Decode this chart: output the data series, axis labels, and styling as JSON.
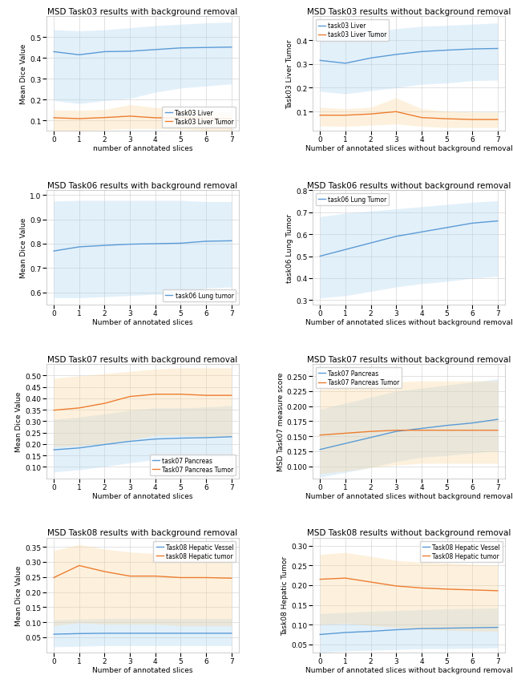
{
  "x": [
    0,
    1,
    2,
    3,
    4,
    5,
    6,
    7
  ],
  "plots": [
    {
      "title": "MSD Task03 results with background removal",
      "xlabel": "number of annotated slices",
      "ylabel": "Mean Dice Value",
      "series": [
        {
          "label": "Task03 Liver",
          "color": "#5B9BD5",
          "mean": [
            0.43,
            0.415,
            0.43,
            0.432,
            0.44,
            0.448,
            0.45,
            0.452
          ],
          "std_low": [
            0.195,
            0.18,
            0.195,
            0.205,
            0.235,
            0.255,
            0.265,
            0.275
          ],
          "std_high": [
            0.535,
            0.53,
            0.535,
            0.545,
            0.555,
            0.562,
            0.568,
            0.572
          ]
        },
        {
          "label": "Task03 Liver Tumor",
          "color": "#ED7D31",
          "mean": [
            0.112,
            0.108,
            0.113,
            0.12,
            0.112,
            0.112,
            0.11,
            0.108
          ],
          "std_low": [
            0.05,
            0.048,
            0.055,
            0.06,
            0.06,
            0.058,
            0.05,
            0.048
          ],
          "std_high": [
            0.15,
            0.148,
            0.152,
            0.175,
            0.162,
            0.15,
            0.145,
            0.14
          ]
        }
      ],
      "ylim": [
        0.05,
        0.6
      ],
      "yticks": [
        0.1,
        0.2,
        0.3,
        0.4,
        0.5
      ],
      "legend_loc": "lower right"
    },
    {
      "title": "MSD Task03 results without background removal",
      "xlabel": "Number of annotated slices without background removal",
      "ylabel": "Task03 Liver Tumor",
      "series": [
        {
          "label": "task03 Liver",
          "color": "#5B9BD5",
          "mean": [
            0.315,
            0.303,
            0.325,
            0.34,
            0.352,
            0.358,
            0.363,
            0.365
          ],
          "std_low": [
            0.185,
            0.175,
            0.188,
            0.2,
            0.215,
            0.22,
            0.23,
            0.232
          ],
          "std_high": [
            0.425,
            0.42,
            0.432,
            0.448,
            0.458,
            0.462,
            0.467,
            0.472
          ]
        },
        {
          "label": "task03 Liver Tumor",
          "color": "#ED7D31",
          "mean": [
            0.085,
            0.085,
            0.09,
            0.1,
            0.075,
            0.07,
            0.067,
            0.067
          ],
          "std_low": [
            0.04,
            0.038,
            0.043,
            0.048,
            0.038,
            0.033,
            0.033,
            0.033
          ],
          "std_high": [
            0.118,
            0.112,
            0.118,
            0.158,
            0.112,
            0.102,
            0.098,
            0.098
          ]
        }
      ],
      "ylim": [
        0.02,
        0.5
      ],
      "yticks": [
        0.1,
        0.2,
        0.3,
        0.4
      ],
      "legend_loc": "upper left"
    },
    {
      "title": "MSD Task06 results with background removal",
      "xlabel": "Number of annotated slices",
      "ylabel": "Mean Dice Value",
      "series": [
        {
          "label": "task06 Lung tumor",
          "color": "#5B9BD5",
          "mean": [
            0.77,
            0.787,
            0.793,
            0.798,
            0.8,
            0.802,
            0.81,
            0.812
          ],
          "std_low": [
            0.578,
            0.578,
            0.582,
            0.587,
            0.592,
            0.593,
            0.618,
            0.622
          ],
          "std_high": [
            0.975,
            0.978,
            0.978,
            0.978,
            0.978,
            0.978,
            0.973,
            0.973
          ]
        }
      ],
      "ylim": [
        0.55,
        1.02
      ],
      "yticks": [
        0.6,
        0.7,
        0.8,
        0.9,
        1.0
      ],
      "legend_loc": "lower right"
    },
    {
      "title": "MSD Task06 results without background removal",
      "xlabel": "Number of annotated slices without background removal",
      "ylabel": "task06 Lung Tumor",
      "series": [
        {
          "label": "task06 Lung Tumor",
          "color": "#5B9BD5",
          "mean": [
            0.5,
            0.53,
            0.56,
            0.59,
            0.61,
            0.63,
            0.65,
            0.66
          ],
          "std_low": [
            0.31,
            0.32,
            0.34,
            0.36,
            0.375,
            0.385,
            0.4,
            0.408
          ],
          "std_high": [
            0.68,
            0.695,
            0.705,
            0.715,
            0.725,
            0.735,
            0.745,
            0.752
          ]
        }
      ],
      "ylim": [
        0.28,
        0.8
      ],
      "yticks": [
        0.3,
        0.4,
        0.5,
        0.6,
        0.7,
        0.8
      ],
      "legend_loc": "upper left"
    },
    {
      "title": "MSD Task07 results with background removal",
      "xlabel": "Number of annotated slices",
      "ylabel": "Mean Dice Value",
      "series": [
        {
          "label": "task07 Pancreas",
          "color": "#5B9BD5",
          "mean": [
            0.175,
            0.183,
            0.198,
            0.212,
            0.222,
            0.226,
            0.228,
            0.232
          ],
          "std_low": [
            0.078,
            0.088,
            0.102,
            0.118,
            0.132,
            0.138,
            0.142,
            0.148
          ],
          "std_high": [
            0.308,
            0.318,
            0.332,
            0.348,
            0.358,
            0.358,
            0.362,
            0.368
          ]
        },
        {
          "label": "Task07 Pancreas Tumor",
          "color": "#ED7D31",
          "mean": [
            0.348,
            0.358,
            0.378,
            0.408,
            0.418,
            0.418,
            0.413,
            0.413
          ],
          "std_low": [
            0.188,
            0.193,
            0.203,
            0.218,
            0.238,
            0.238,
            0.233,
            0.233
          ],
          "std_high": [
            0.488,
            0.498,
            0.508,
            0.518,
            0.528,
            0.533,
            0.533,
            0.533
          ]
        }
      ],
      "ylim": [
        0.05,
        0.55
      ],
      "yticks": [
        0.1,
        0.15,
        0.2,
        0.25,
        0.3,
        0.35,
        0.4,
        0.45,
        0.5
      ],
      "legend_loc": "lower right"
    },
    {
      "title": "MSD Task07 results without background removal",
      "xlabel": "Number of annotated slices without background removal",
      "ylabel": "MSD Task07 measure score",
      "series": [
        {
          "label": "Task07 Pancreas",
          "color": "#5B9BD5",
          "mean": [
            0.128,
            0.138,
            0.148,
            0.158,
            0.163,
            0.168,
            0.172,
            0.178
          ],
          "std_low": [
            0.082,
            0.09,
            0.098,
            0.108,
            0.115,
            0.118,
            0.122,
            0.126
          ],
          "std_high": [
            0.195,
            0.205,
            0.215,
            0.225,
            0.23,
            0.235,
            0.24,
            0.245
          ]
        },
        {
          "label": "Task07 Pancreas Tumor",
          "color": "#ED7D31",
          "mean": [
            0.152,
            0.155,
            0.158,
            0.16,
            0.16,
            0.16,
            0.16,
            0.16
          ],
          "std_low": [
            0.088,
            0.092,
            0.098,
            0.102,
            0.105,
            0.105,
            0.105,
            0.105
          ],
          "std_high": [
            0.228,
            0.232,
            0.238,
            0.24,
            0.242,
            0.242,
            0.242,
            0.242
          ]
        }
      ],
      "ylim": [
        0.08,
        0.27
      ],
      "yticks": [
        0.1,
        0.125,
        0.15,
        0.175,
        0.2,
        0.225,
        0.25
      ],
      "legend_loc": "upper left"
    },
    {
      "title": "MSD Task08 results with background removal",
      "xlabel": "Number of annotated slices",
      "ylabel": "Mean Dice Value",
      "series": [
        {
          "label": "Task08 Hepatic Vessel",
          "color": "#5B9BD5",
          "mean": [
            0.06,
            0.062,
            0.063,
            0.063,
            0.063,
            0.063,
            0.063,
            0.063
          ],
          "std_low": [
            0.018,
            0.02,
            0.022,
            0.022,
            0.022,
            0.022,
            0.022,
            0.022
          ],
          "std_high": [
            0.108,
            0.11,
            0.112,
            0.112,
            0.112,
            0.112,
            0.112,
            0.112
          ]
        },
        {
          "label": "task08 Hepatic tumor",
          "color": "#ED7D31",
          "mean": [
            0.248,
            0.288,
            0.268,
            0.253,
            0.253,
            0.248,
            0.248,
            0.246
          ],
          "std_low": [
            0.088,
            0.098,
            0.093,
            0.093,
            0.093,
            0.088,
            0.088,
            0.088
          ],
          "std_high": [
            0.338,
            0.358,
            0.343,
            0.333,
            0.328,
            0.323,
            0.318,
            0.316
          ]
        }
      ],
      "ylim": [
        0.0,
        0.38
      ],
      "yticks": [
        0.05,
        0.1,
        0.15,
        0.2,
        0.25,
        0.3,
        0.35
      ],
      "legend_loc": "upper right"
    },
    {
      "title": "MSD Task08 results without background removal",
      "xlabel": "Number of annotated slices without background removal",
      "ylabel": "Task08 Hepatic Tumor",
      "series": [
        {
          "label": "Task08 Hepatic Vessel",
          "color": "#5B9BD5",
          "mean": [
            0.075,
            0.08,
            0.083,
            0.087,
            0.09,
            0.091,
            0.092,
            0.093
          ],
          "std_low": [
            0.03,
            0.033,
            0.035,
            0.037,
            0.039,
            0.039,
            0.04,
            0.041
          ],
          "std_high": [
            0.128,
            0.131,
            0.134,
            0.136,
            0.138,
            0.14,
            0.141,
            0.142
          ]
        },
        {
          "label": "Task08 Hepatic tumor",
          "color": "#ED7D31",
          "mean": [
            0.215,
            0.218,
            0.208,
            0.198,
            0.193,
            0.19,
            0.188,
            0.186
          ],
          "std_low": [
            0.1,
            0.103,
            0.098,
            0.093,
            0.088,
            0.086,
            0.084,
            0.083
          ],
          "std_high": [
            0.278,
            0.283,
            0.273,
            0.263,
            0.258,
            0.256,
            0.253,
            0.251
          ]
        }
      ],
      "ylim": [
        0.03,
        0.32
      ],
      "yticks": [
        0.05,
        0.1,
        0.15,
        0.2,
        0.25,
        0.3
      ],
      "legend_loc": "upper right"
    }
  ],
  "blue_color": "#5B9BD5",
  "blue_fill": "#AED6F1",
  "orange_color": "#ED7D31",
  "orange_fill": "#FAD7A0",
  "grid_color": "#CCCCCC",
  "bg_color": "#FFFFFF",
  "title_fontsize": 7.5,
  "label_fontsize": 6.5,
  "tick_fontsize": 6.5,
  "legend_fontsize": 5.5,
  "line_width": 1.0,
  "fill_alpha": 0.35
}
